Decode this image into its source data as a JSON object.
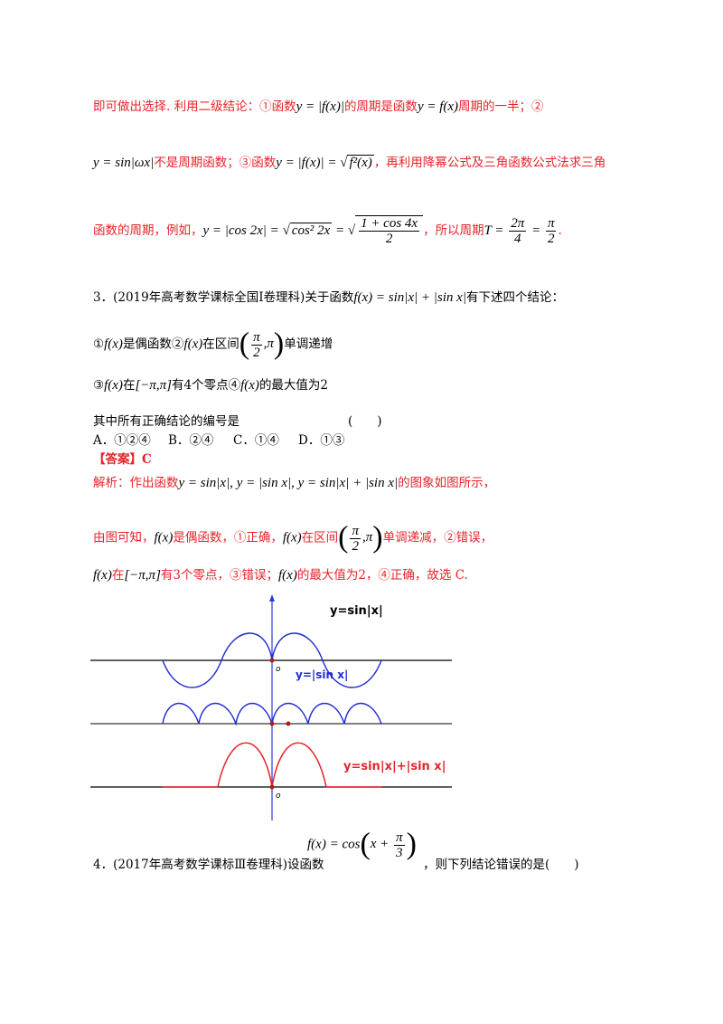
{
  "para1": {
    "text_a": "即可做出选择. 利用二级结论：①函数",
    "math_a": "y = |f(x)|",
    "text_b": "的周期是函数",
    "math_b": "y = f(x)",
    "text_c": "周期的一半；②"
  },
  "para2": {
    "math_a": "y = sin|ωx|",
    "text_a": "不是周期函数；③函数",
    "math_b_left": "y = |f(x)| = ",
    "math_b_sqrt": "f²(x)",
    "text_b": "，再利用降幂公式及三角函数公式法求三角"
  },
  "para3": {
    "text_a": "函数的周期，例如，",
    "math_a": "y = |cos 2x| = ",
    "math_sqrt1": "cos² 2x",
    "math_eq": " = ",
    "frac_num": "1 + cos 4x",
    "frac_den": "2",
    "text_b": "，所以周期",
    "math_T": "T = ",
    "t_num": "2π",
    "t_den": "4",
    "eq2": " = ",
    "p_num": "π",
    "p_den": "2",
    "end": "."
  },
  "q3": {
    "number": "3．",
    "source": "(2019年高考数学课标全国Ⅰ卷理科)",
    "text_a": "关于函数",
    "math": "f(x) = sin|x| + |sin x|",
    "text_b": "有下述四个结论：",
    "c1_prefix": "①",
    "c1_fx": "f(x)",
    "c1_text": "是偶函数②",
    "c2_fx": "f(x)",
    "c2_text": "在区间",
    "c2_num": "π",
    "c2_den": "2",
    "c2_pi": ",π",
    "c2_tail": "单调递增",
    "c3_prefix": "③",
    "c3_fx": "f(x)",
    "c3_text": "在",
    "c3_interval": "[−π,π]",
    "c3_tail": "有4个零点④",
    "c4_fx": "f(x)",
    "c4_tail": "的最大值为2",
    "prompt": "其中所有正确结论的编号是",
    "paren": "(　　)",
    "options": [
      "A．①②④",
      "B．②④",
      "C．①④",
      "D．①③"
    ],
    "answer_label": "【答案】",
    "answer_value": "C"
  },
  "analysis": {
    "text_a": "解析：作出函数",
    "math_a": "y = sin|x|, y = |sin x|, y = sin|x| + |sin x|",
    "text_b": "的图象如图所示，",
    "l2_a": "由图可知，",
    "l2_fx1": "f(x)",
    "l2_b": "是偶函数，①正确，",
    "l2_fx2": "f(x)",
    "l2_c": "在区间",
    "l2_num": "π",
    "l2_den": "2",
    "l2_pi": ",π",
    "l2_d": "单调递减，②错误，",
    "l3_fx1": "f(x)",
    "l3_a": "在",
    "l3_interval": "[−π,π]",
    "l3_b": "有3个零点，③错误；",
    "l3_fx2": "f(x)",
    "l3_c": "的最大值为2，④正确，故选 C."
  },
  "graph": {
    "label_top": "y=sin|x|",
    "label_mid": "y=|sin x|",
    "label_bot": "y=sin|x|+|sin x|",
    "origin": "o",
    "colors": {
      "top": "#1f2bd4",
      "mid": "#1f2bd4",
      "bot": "#e8232a",
      "axis": "#000000",
      "yaxis": "#2a3bd6"
    }
  },
  "q4": {
    "number": "4．",
    "source": "(2017年高考数学课标Ⅲ卷理科)",
    "text_a": "设函数",
    "math_left": "f(x) = cos",
    "math_x": "x + ",
    "num": "π",
    "den": "3",
    "text_b": "，则下列结论错误的是(　　)"
  }
}
